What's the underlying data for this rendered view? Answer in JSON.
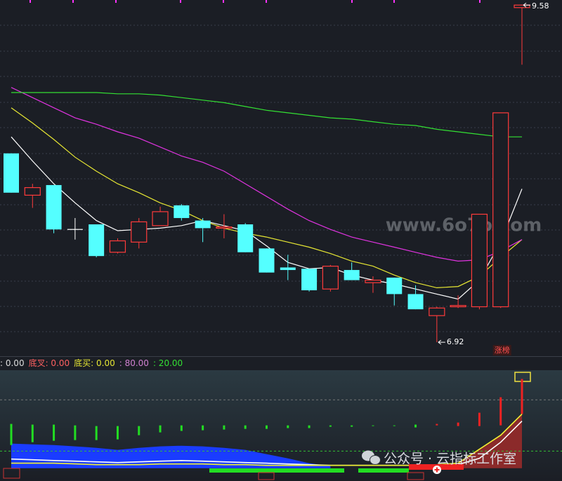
{
  "chart_data": [
    {
      "type": "candlestick",
      "ylim": [
        6.81,
        9.62
      ],
      "up_color": "#ff3b3b",
      "down_color": "#54ffff",
      "flat_color": "#ffffff",
      "open": [
        8.41,
        8.08,
        8.16,
        7.81,
        7.85,
        7.63,
        7.71,
        7.84,
        8.0,
        7.88,
        7.82,
        7.85,
        7.66,
        7.51,
        7.5,
        7.34,
        7.49,
        7.39,
        7.43,
        7.3,
        7.13,
        7.2,
        7.2,
        7.2,
        9.56
      ],
      "close": [
        8.1,
        8.14,
        7.81,
        7.81,
        7.6,
        7.72,
        7.87,
        7.95,
        7.9,
        7.82,
        7.83,
        7.63,
        7.47,
        7.49,
        7.33,
        7.52,
        7.41,
        7.41,
        7.3,
        7.18,
        7.19,
        7.21,
        7.93,
        8.73,
        9.58
      ],
      "high": [
        8.41,
        8.17,
        8.16,
        7.9,
        7.85,
        7.74,
        7.9,
        7.99,
        8.01,
        7.9,
        7.93,
        7.86,
        7.66,
        7.61,
        7.5,
        7.53,
        7.55,
        7.44,
        7.43,
        7.37,
        7.2,
        7.29,
        7.93,
        8.73,
        9.58
      ],
      "low": [
        8.1,
        7.98,
        7.78,
        7.73,
        7.59,
        7.62,
        7.66,
        7.84,
        7.88,
        7.71,
        7.74,
        7.63,
        7.47,
        7.41,
        7.32,
        7.32,
        7.41,
        7.31,
        7.21,
        7.18,
        6.92,
        7.19,
        7.18,
        7.19,
        9.11
      ],
      "lines": [
        {
          "color": "#ffffff",
          "values": [
            8.54,
            8.35,
            8.17,
            8.02,
            7.88,
            7.8,
            7.81,
            7.82,
            7.84,
            7.88,
            7.84,
            7.8,
            7.68,
            7.55,
            7.5,
            7.51,
            7.45,
            7.41,
            7.38,
            7.34,
            7.3,
            7.26,
            7.41,
            7.71,
            8.13
          ]
        },
        {
          "color": "#e6e633",
          "values": [
            8.77,
            8.65,
            8.52,
            8.38,
            8.27,
            8.17,
            8.1,
            8.02,
            7.96,
            7.88,
            7.82,
            7.78,
            7.75,
            7.71,
            7.67,
            7.62,
            7.56,
            7.52,
            7.45,
            7.39,
            7.35,
            7.36,
            7.44,
            7.59,
            7.73
          ]
        },
        {
          "color": "#e033e0",
          "values": [
            8.93,
            8.85,
            8.77,
            8.69,
            8.64,
            8.58,
            8.53,
            8.46,
            8.39,
            8.34,
            8.27,
            8.17,
            8.07,
            7.97,
            7.88,
            7.81,
            7.75,
            7.71,
            7.67,
            7.63,
            7.59,
            7.56,
            7.57,
            7.64,
            7.73
          ]
        },
        {
          "color": "#33e033",
          "values": [
            8.89,
            8.89,
            8.89,
            8.89,
            8.89,
            8.88,
            8.88,
            8.87,
            8.85,
            8.83,
            8.81,
            8.78,
            8.75,
            8.73,
            8.71,
            8.69,
            8.68,
            8.66,
            8.64,
            8.63,
            8.6,
            8.58,
            8.56,
            8.54,
            8.54
          ]
        }
      ],
      "max_label": 9.58,
      "min_label": 6.92,
      "annotation": "涨榜",
      "watermark": "www.6o7o.com"
    },
    {
      "type": "indicator",
      "ylim": [
        -15,
        113
      ],
      "legend": [
        {
          "text": ": 0.00",
          "color": "#dddddd"
        },
        {
          "text": "底叉: 0.00",
          "color": "#ff6060"
        },
        {
          "text": "底买: 0.00",
          "color": "#e6e633"
        },
        {
          "text": ": 80.00",
          "color": "#d080d0"
        },
        {
          "text": ": 20.00",
          "color": "#33e033"
        }
      ],
      "reference_lines": [
        {
          "value": 80,
          "color": "#777777"
        },
        {
          "value": 20,
          "color": "#33c033"
        }
      ],
      "bars": {
        "low": [
          27.1,
          30.4,
          32.1,
          32.9,
          32.9,
          33.7,
          38.6,
          41.9,
          43.6,
          44.4,
          45.2,
          46.0,
          46.0,
          46.9,
          46.9,
          48.5,
          48.5,
          49.3,
          49.3,
          47.7,
          50.1,
          49.3,
          49.3,
          50.1,
          63.3
        ],
        "high": [
          51.8,
          51.0,
          51.0,
          50.1,
          49.3,
          49.3,
          49.3,
          50.1,
          50.1,
          50.1,
          50.1,
          50.1,
          50.1,
          50.1,
          50.1,
          50.1,
          50.1,
          50.1,
          50.1,
          51.0,
          51.8,
          53.4,
          64.9,
          83.0,
          104.4
        ],
        "colors": [
          "#22dd22",
          "#22dd22",
          "#22dd22",
          "#22dd22",
          "#22dd22",
          "#22dd22",
          "#22dd22",
          "#22dd22",
          "#22dd22",
          "#22dd22",
          "#22dd22",
          "#22dd22",
          "#22dd22",
          "#22dd22",
          "#22dd22",
          "#22dd22",
          "#22dd22",
          "#22dd22",
          "#22dd22",
          "#22dd22",
          "#ee2222",
          "#ee2222",
          "#ee2222",
          "#ee2222",
          "#ee2222"
        ]
      },
      "areas": [
        {
          "color": "#1a3cff",
          "values": [
            28.8,
            27.9,
            27.1,
            25.5,
            23.8,
            21.4,
            23.8,
            25.5,
            26.3,
            25.5,
            23.8,
            21.4,
            16.4,
            11.5,
            5.8,
            2.5,
            null,
            null,
            null,
            null,
            null,
            null,
            null,
            null,
            null
          ]
        },
        {
          "color": "#8b2a2a",
          "values": [
            null,
            null,
            null,
            null,
            null,
            null,
            null,
            null,
            null,
            null,
            null,
            null,
            null,
            null,
            null,
            null,
            null,
            null,
            null,
            2.5,
            4.1,
            5.8,
            22.2,
            38.6,
            63.3
          ]
        }
      ],
      "lines": [
        {
          "color": "#ffffff",
          "values": [
            10.7,
            9.9,
            9.0,
            8.2,
            7.4,
            6.6,
            7.4,
            8.2,
            9.0,
            8.2,
            7.4,
            6.6,
            5.8,
            4.9,
            4.1,
            3.3,
            3.3,
            3.3,
            3.3,
            3.3,
            3.3,
            4.1,
            11.5,
            30.4,
            55.1
          ]
        },
        {
          "color": "#f0f033",
          "values": [
            5.8,
            5.8,
            5.8,
            5.0,
            4.1,
            4.1,
            4.1,
            4.9,
            4.9,
            4.9,
            4.1,
            4.1,
            3.3,
            3.3,
            3.3,
            3.3,
            3.3,
            3.3,
            3.3,
            3.3,
            4.1,
            5.8,
            22.2,
            38.6,
            63.3
          ]
        }
      ],
      "watermark": "公众号 · 云指标工作室"
    }
  ]
}
